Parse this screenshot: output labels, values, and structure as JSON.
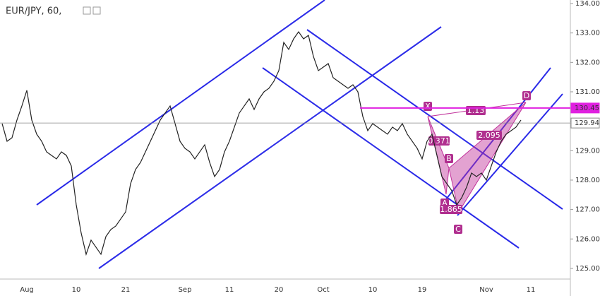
{
  "chart_data": {
    "type": "line",
    "title": "EUR/JPY, 60,",
    "categories": [
      null,
      null,
      null,
      null,
      null,
      "Aug",
      null,
      null,
      null,
      null,
      null,
      null,
      null,
      null,
      null,
      "10",
      null,
      null,
      null,
      null,
      null,
      null,
      null,
      null,
      null,
      "21",
      null,
      null,
      null,
      null,
      null,
      null,
      null,
      null,
      null,
      null,
      null,
      "Sep",
      null,
      null,
      null,
      null,
      null,
      null,
      null,
      null,
      "11",
      null,
      null,
      null,
      null,
      null,
      null,
      null,
      null,
      null,
      "20",
      null,
      null,
      null,
      null,
      null,
      null,
      null,
      null,
      "Oct",
      null,
      null,
      null,
      null,
      null,
      null,
      null,
      null,
      null,
      "10",
      null,
      null,
      null,
      null,
      null,
      null,
      null,
      null,
      null,
      "19",
      null,
      null,
      null,
      null,
      null,
      null,
      null,
      null,
      null,
      null,
      null,
      null,
      "Nov",
      null,
      null,
      null,
      null,
      null,
      null,
      null,
      null,
      "11"
    ],
    "series": [
      {
        "name": "EUR/JPY",
        "color": "#222222",
        "values": [
          129.92,
          129.32,
          129.44,
          130.04,
          130.52,
          131.05,
          130.04,
          129.56,
          129.32,
          128.96,
          128.84,
          128.72,
          128.96,
          128.84,
          128.48,
          127.16,
          126.2,
          125.48,
          125.96,
          125.72,
          125.48,
          126.08,
          126.32,
          126.44,
          126.68,
          126.92,
          127.88,
          128.36,
          128.6,
          128.96,
          129.32,
          129.68,
          130.04,
          130.28,
          130.52,
          129.92,
          129.32,
          129.08,
          128.96,
          128.72,
          128.96,
          129.2,
          128.6,
          128.12,
          128.36,
          128.96,
          129.32,
          129.8,
          130.28,
          130.52,
          130.76,
          130.4,
          130.76,
          131.0,
          131.12,
          131.36,
          131.72,
          132.68,
          132.44,
          132.8,
          133.04,
          132.8,
          132.92,
          132.2,
          131.72,
          131.84,
          131.96,
          131.48,
          131.36,
          131.24,
          131.12,
          131.24,
          131.0,
          130.16,
          129.68,
          129.92,
          129.8,
          129.68,
          129.56,
          129.8,
          129.68,
          129.92,
          129.56,
          129.32,
          129.08,
          128.72,
          129.32,
          129.56,
          128.84,
          128.12,
          127.88,
          127.64,
          127.16,
          127.4,
          127.76,
          128.24,
          128.12,
          128.24,
          128.0,
          128.48,
          128.96,
          129.32,
          129.56,
          129.68,
          129.8,
          130.04,
          null,
          null
        ]
      }
    ],
    "ylim": [
      124.71,
      134.12
    ],
    "yticks": [
      {
        "value": 125,
        "label": "125.00"
      },
      {
        "value": 126,
        "label": "126.00"
      },
      {
        "value": 127,
        "label": "127.00"
      },
      {
        "value": 128,
        "label": "128.00"
      },
      {
        "value": 129,
        "label": "129.00"
      },
      {
        "value": 130,
        "label": "130.00"
      },
      {
        "value": 131,
        "label": "131.00"
      },
      {
        "value": 132,
        "label": "132.00"
      },
      {
        "value": 133,
        "label": "133.00"
      },
      {
        "value": 134,
        "label": "134.00"
      }
    ],
    "price_labels": [
      {
        "value": 130.45,
        "label": "130.45",
        "color": "#e020e0"
      },
      {
        "value": 129.94,
        "label": "129.94",
        "color": "#888888"
      }
    ],
    "annotations": [
      "X",
      "A",
      "B",
      "C",
      "D",
      "0.371",
      "1.865",
      "2.095",
      "1.13"
    ]
  }
}
